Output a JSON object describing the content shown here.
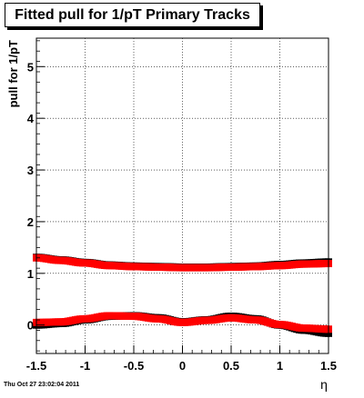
{
  "title": "Fitted pull for 1/pT  Primary Tracks",
  "footer": {
    "timestamp": "Thu Oct 27 23:02:04 2011"
  },
  "chart_data": {
    "type": "scatter",
    "title": "Fitted pull for 1/pT  Primary Tracks",
    "xlabel": "η",
    "ylabel": "pull for 1/pT",
    "xlim": [
      -1.5,
      1.5
    ],
    "ylim": [
      -0.55,
      5.55
    ],
    "grid": true,
    "xticks": [
      -1.5,
      -1,
      -0.5,
      0,
      0.5,
      1,
      1.5
    ],
    "xtick_labels": [
      "-1.5",
      "-1",
      "-0.5",
      "0",
      "0.5",
      "1",
      "1.5"
    ],
    "yticks": [
      0,
      1,
      2,
      3,
      4,
      5
    ],
    "ytick_labels": [
      "0",
      "1",
      "2",
      "3",
      "4",
      "5"
    ],
    "series_color_black": "#000000",
    "series_color_red": "#ff0000",
    "series": [
      {
        "role": "sigma",
        "x": [
          -1.5,
          -1.25,
          -1.0,
          -0.75,
          -0.5,
          -0.25,
          0.0,
          0.25,
          0.5,
          0.75,
          1.0,
          1.25,
          1.5
        ],
        "y": [
          1.31,
          1.26,
          1.21,
          1.16,
          1.14,
          1.13,
          1.12,
          1.12,
          1.13,
          1.14,
          1.17,
          1.2,
          1.22
        ],
        "y_red": [
          1.3,
          1.25,
          1.2,
          1.15,
          1.13,
          1.12,
          1.11,
          1.11,
          1.12,
          1.13,
          1.15,
          1.18,
          1.19
        ]
      },
      {
        "role": "mean",
        "x": [
          -1.5,
          -1.25,
          -1.0,
          -0.75,
          -0.5,
          -0.25,
          0.0,
          0.25,
          0.5,
          0.75,
          1.0,
          1.25,
          1.5
        ],
        "y": [
          0.0,
          0.03,
          0.1,
          0.17,
          0.18,
          0.14,
          0.06,
          0.1,
          0.17,
          0.12,
          0.0,
          -0.1,
          -0.16
        ],
        "y_red": [
          0.05,
          0.06,
          0.12,
          0.18,
          0.17,
          0.12,
          0.05,
          0.09,
          0.14,
          0.1,
          0.01,
          -0.06,
          -0.08
        ]
      }
    ]
  }
}
